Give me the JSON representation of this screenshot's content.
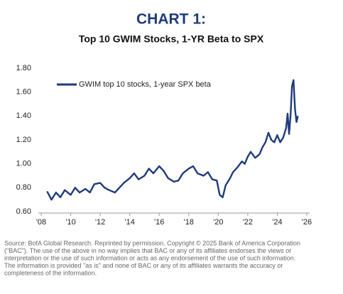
{
  "chart_data": {
    "type": "line",
    "title": "CHART 1:",
    "subtitle": "Top 10 GWIM Stocks, 1-YR Beta to SPX",
    "x": [
      2008.4,
      2008.7,
      2009,
      2009.3,
      2009.6,
      2010,
      2010.3,
      2010.6,
      2011,
      2011.3,
      2011.6,
      2012,
      2012.3,
      2012.6,
      2013,
      2013.3,
      2013.6,
      2014,
      2014.3,
      2014.6,
      2015,
      2015.3,
      2015.6,
      2016,
      2016.3,
      2016.6,
      2017,
      2017.3,
      2017.6,
      2018,
      2018.3,
      2018.6,
      2019,
      2019.3,
      2019.6,
      2019.9,
      2020.1,
      2020.3,
      2020.5,
      2020.8,
      2021,
      2021.3,
      2021.6,
      2021.8,
      2022,
      2022.2,
      2022.5,
      2022.8,
      2023,
      2023.2,
      2023.4,
      2023.6,
      2023.8,
      2024,
      2024.2,
      2024.4,
      2024.6,
      2024.7,
      2024.8,
      2024.9,
      2025,
      2025.1,
      2025.2,
      2025.3,
      2025.4
    ],
    "series": [
      {
        "name": "GWIM top 10 stocks, 1-year SPX beta",
        "color": "#1f3b78",
        "values": [
          0.77,
          0.7,
          0.76,
          0.72,
          0.78,
          0.74,
          0.8,
          0.76,
          0.79,
          0.76,
          0.83,
          0.84,
          0.8,
          0.78,
          0.76,
          0.8,
          0.84,
          0.88,
          0.92,
          0.87,
          0.9,
          0.96,
          0.92,
          0.98,
          0.94,
          0.88,
          0.85,
          0.86,
          0.92,
          0.96,
          0.98,
          0.92,
          0.9,
          0.93,
          0.87,
          0.86,
          0.74,
          0.72,
          0.82,
          0.88,
          0.93,
          0.97,
          1.02,
          1.0,
          1.06,
          1.1,
          1.05,
          1.08,
          1.14,
          1.18,
          1.26,
          1.2,
          1.18,
          1.24,
          1.18,
          1.22,
          1.3,
          1.42,
          1.25,
          1.4,
          1.65,
          1.7,
          1.46,
          1.35,
          1.4
        ]
      }
    ],
    "xlim": [
      2008,
      2026
    ],
    "xticks": [
      {
        "value": 2008,
        "label": "'08"
      },
      {
        "value": 2010,
        "label": "'10"
      },
      {
        "value": 2012,
        "label": "'12"
      },
      {
        "value": 2014,
        "label": "'14"
      },
      {
        "value": 2016,
        "label": "'16"
      },
      {
        "value": 2018,
        "label": "'18"
      },
      {
        "value": 2020,
        "label": "'20"
      },
      {
        "value": 2022,
        "label": "'22"
      },
      {
        "value": 2024,
        "label": "'24"
      },
      {
        "value": 2026,
        "label": "'26"
      }
    ],
    "ylim": [
      0.6,
      1.8
    ],
    "yticks": [
      {
        "value": 0.6,
        "label": "0.60"
      },
      {
        "value": 0.8,
        "label": "0.80"
      },
      {
        "value": 1.0,
        "label": "1.00"
      },
      {
        "value": 1.2,
        "label": "1.20"
      },
      {
        "value": 1.4,
        "label": "1.40"
      },
      {
        "value": 1.6,
        "label": "1.60"
      },
      {
        "value": 1.8,
        "label": "1.80"
      }
    ],
    "grid": false,
    "source": [
      "Source: BofA Global Research. Reprinted by permission. Copyright © 2025 Bank of America Corporation",
      "(\"BAC\"). The use of the above in no way implies that BAC or any of its affiliates endorses the views or",
      "interpretation or the use of such information or acts as any endorsement of the use of such information.",
      "The information is provided \"as is\" and none of BAC or any of its affiliates warrants the accuracy or",
      "completeness of the information."
    ]
  }
}
